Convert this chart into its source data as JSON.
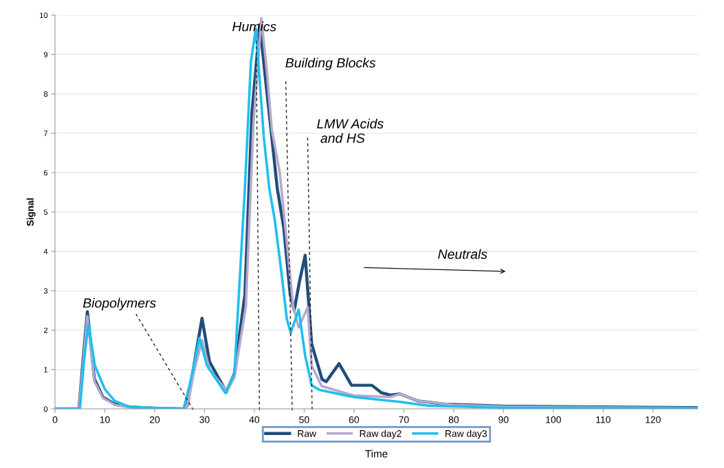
{
  "chart_data": {
    "type": "line",
    "xlabel": "Time",
    "ylabel": "Signal",
    "xlim": [
      0,
      129
    ],
    "ylim": [
      0,
      10
    ],
    "xticks": [
      0,
      10,
      20,
      30,
      40,
      50,
      60,
      70,
      80,
      90,
      100,
      110,
      120
    ],
    "yticks": [
      0,
      1,
      2,
      3,
      4,
      5,
      6,
      7,
      8,
      9,
      10
    ],
    "grid": "y",
    "legend": "bottom",
    "marker": "none",
    "line_style": "solid",
    "series": [
      {
        "name": "Raw",
        "color": "#1f4e79",
        "x": [
          0,
          4.8,
          5.6,
          6.5,
          7.9,
          9.6,
          12,
          15,
          20,
          26,
          26.6,
          28,
          29.5,
          31,
          34.4,
          36,
          38.1,
          39.5,
          41.1,
          42.3,
          43.5,
          44.6,
          45.9,
          47.2,
          48,
          49,
          50.2,
          51.5,
          53.6,
          54.4,
          57,
          59.5,
          63.6,
          65.5,
          67.3,
          69.2,
          72.9,
          78.4,
          90,
          110,
          129
        ],
        "values": [
          0,
          0,
          1.2,
          2.47,
          0.76,
          0.3,
          0.12,
          0.05,
          0.02,
          0,
          0.1,
          1.2,
          2.3,
          1.2,
          0.43,
          0.9,
          2.9,
          7.5,
          9.76,
          8.3,
          6.9,
          5.6,
          4.6,
          2.9,
          2.5,
          3.2,
          3.9,
          1.65,
          0.75,
          0.69,
          1.15,
          0.6,
          0.6,
          0.41,
          0.35,
          0.38,
          0.2,
          0.12,
          0.07,
          0.05,
          0.03
        ]
      },
      {
        "name": "Raw day2",
        "color": "#b7a9cc",
        "x": [
          0,
          4.8,
          5.6,
          6.5,
          7.9,
          9.6,
          12,
          15,
          20,
          26,
          26.6,
          28,
          29.5,
          31,
          34.5,
          36,
          38.3,
          39.8,
          41.4,
          42.5,
          43.5,
          45.1,
          46.5,
          47.8,
          48.9,
          50.7,
          51.5,
          53.5,
          59.9,
          67.3,
          69.2,
          73,
          80,
          90,
          110,
          129
        ],
        "values": [
          0,
          0,
          1.1,
          2.35,
          0.7,
          0.28,
          0.1,
          0.04,
          0.02,
          0,
          0.1,
          1.0,
          1.75,
          1.0,
          0.45,
          0.8,
          2.6,
          7.2,
          9.92,
          8.6,
          7.1,
          6.0,
          4.25,
          2.6,
          2.07,
          2.58,
          1.1,
          0.58,
          0.34,
          0.3,
          0.38,
          0.2,
          0.1,
          0.06,
          0.04,
          0.02
        ]
      },
      {
        "name": "Raw day3",
        "color": "#1fbfef",
        "x": [
          0,
          5,
          5.8,
          6.7,
          8,
          10,
          12,
          15,
          20,
          25.8,
          27,
          29,
          30.5,
          34.2,
          36,
          38.1,
          39.3,
          40.3,
          41.9,
          43,
          44.1,
          45.4,
          46.5,
          47.3,
          48.9,
          50.2,
          51.5,
          53.1,
          60,
          69.2,
          75,
          90,
          129
        ],
        "values": [
          0,
          0,
          1.2,
          2.17,
          1.1,
          0.5,
          0.2,
          0.05,
          0.02,
          0,
          0.6,
          1.8,
          1.1,
          0.4,
          0.9,
          5.6,
          8.8,
          9.66,
          6.9,
          5.6,
          4.8,
          3.5,
          2.3,
          1.93,
          2.52,
          1.35,
          0.6,
          0.48,
          0.3,
          0.18,
          0.08,
          0.03,
          0.02
        ]
      }
    ],
    "annotations": [
      "Humics",
      "Building Blocks",
      "LMW Acids\n and HS",
      "Biopolymers",
      "Neutrals"
    ]
  }
}
